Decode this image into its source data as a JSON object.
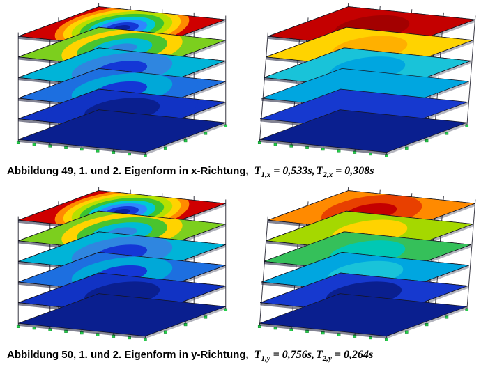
{
  "page": {
    "background": "#ffffff"
  },
  "palette": {
    "contour_scale_low_to_high": [
      "#0a1f8f",
      "#1437d6",
      "#2f86ff",
      "#00c8d7",
      "#3bc431",
      "#b5e000",
      "#ffd300",
      "#ff8a00",
      "#cf0000"
    ],
    "support_green": "#25d04a",
    "frame_gray": "#3b3b46"
  },
  "figures": [
    {
      "id": "abbildung-49",
      "caption_bold": "Abbildung 49, 1. und 2. Eigenform in x-Richtung,",
      "terms": [
        {
          "sym": "T",
          "sub": "1,x",
          "val": " = 0,533s,"
        },
        {
          "sym": "T",
          "sub": "2,x",
          "val": " = 0,308s"
        }
      ],
      "panels": [
        {
          "name": "erste-eigenform-x",
          "mode": "torsion",
          "shifts": [
            0,
            0,
            0,
            0,
            0,
            0
          ],
          "floors": [
            {
              "base": "#0a1f8f"
            },
            {
              "base": "#1133c4",
              "rings": [
                "#1133c4",
                "#0a1f8f"
              ]
            },
            {
              "base": "#1d6fe0",
              "rings": [
                "#1d6fe0",
                "#00a8d8",
                "#1437d6"
              ]
            },
            {
              "base": "#00b4d8",
              "rings": [
                "#00b4d8",
                "#2f86e0",
                "#1437d6"
              ]
            },
            {
              "base": "#7ccf1e",
              "rings": [
                "#7ccf1e",
                "#ffd300",
                "#49c42e",
                "#00bcd4",
                "#2f86e0"
              ]
            },
            {
              "base": "#cf0000",
              "rings": [
                "#cf0000",
                "#ff8a00",
                "#ffd300",
                "#b5e000",
                "#3bc431",
                "#00c8d7",
                "#2f86ff",
                "#1437d6",
                "#0a1f9e"
              ]
            }
          ]
        },
        {
          "name": "zweite-eigenform-x",
          "mode": "translation",
          "shifts": [
            0,
            1,
            3,
            6,
            9,
            12
          ],
          "floors": [
            {
              "base": "#0a1f8f"
            },
            {
              "base": "#1639cf"
            },
            {
              "base": "#00a6e0"
            },
            {
              "base": "#19c3d9",
              "rings": [
                "#19c3d9",
                "#00a6e0"
              ]
            },
            {
              "base": "#ffd300",
              "rings": [
                "#ffd300",
                "#ffb000"
              ]
            },
            {
              "base": "#c40000",
              "rings": [
                "#c40000",
                "#a30000"
              ]
            }
          ]
        }
      ]
    },
    {
      "id": "abbildung-50",
      "caption_bold": "Abbildung 50, 1. und 2. Eigenform in y-Richtung,",
      "terms": [
        {
          "sym": "T",
          "sub": "1,y",
          "val": " = 0,756s,"
        },
        {
          "sym": "T",
          "sub": "2,y",
          "val": " = 0,264s"
        }
      ],
      "panels": [
        {
          "name": "erste-eigenform-y",
          "mode": "torsion",
          "shifts": [
            0,
            0,
            0,
            0,
            0,
            0
          ],
          "floors": [
            {
              "base": "#0a1f8f"
            },
            {
              "base": "#1133c4",
              "rings": [
                "#1133c4",
                "#0a1f8f"
              ]
            },
            {
              "base": "#1d6fe0",
              "rings": [
                "#1d6fe0",
                "#00a8d8",
                "#1437d6"
              ]
            },
            {
              "base": "#00b4d8",
              "rings": [
                "#00b4d8",
                "#2f86e0",
                "#1437d6"
              ]
            },
            {
              "base": "#7ccf1e",
              "rings": [
                "#7ccf1e",
                "#ffd300",
                "#49c42e",
                "#00bcd4",
                "#2f86e0"
              ]
            },
            {
              "base": "#cf0000",
              "rings": [
                "#cf0000",
                "#ff8a00",
                "#ffd300",
                "#b5e000",
                "#3bc431",
                "#00c8d7",
                "#2f86ff",
                "#1437d6",
                "#0a1f9e"
              ]
            }
          ]
        },
        {
          "name": "zweite-eigenform-y",
          "mode": "translation",
          "shifts": [
            0,
            1,
            3,
            6,
            9,
            12
          ],
          "floors": [
            {
              "base": "#0a1f8f"
            },
            {
              "base": "#1639cf",
              "rings": [
                "#1639cf",
                "#0a1f8f"
              ]
            },
            {
              "base": "#00a6e0",
              "rings": [
                "#00a6e0",
                "#19c3d9"
              ]
            },
            {
              "base": "#35c05a",
              "rings": [
                "#35c05a",
                "#00c8b4"
              ]
            },
            {
              "base": "#a5d800",
              "rings": [
                "#a5d800",
                "#ffd300"
              ]
            },
            {
              "base": "#ff8a00",
              "rings": [
                "#ff8a00",
                "#e84000",
                "#c40000"
              ]
            }
          ]
        }
      ]
    }
  ]
}
